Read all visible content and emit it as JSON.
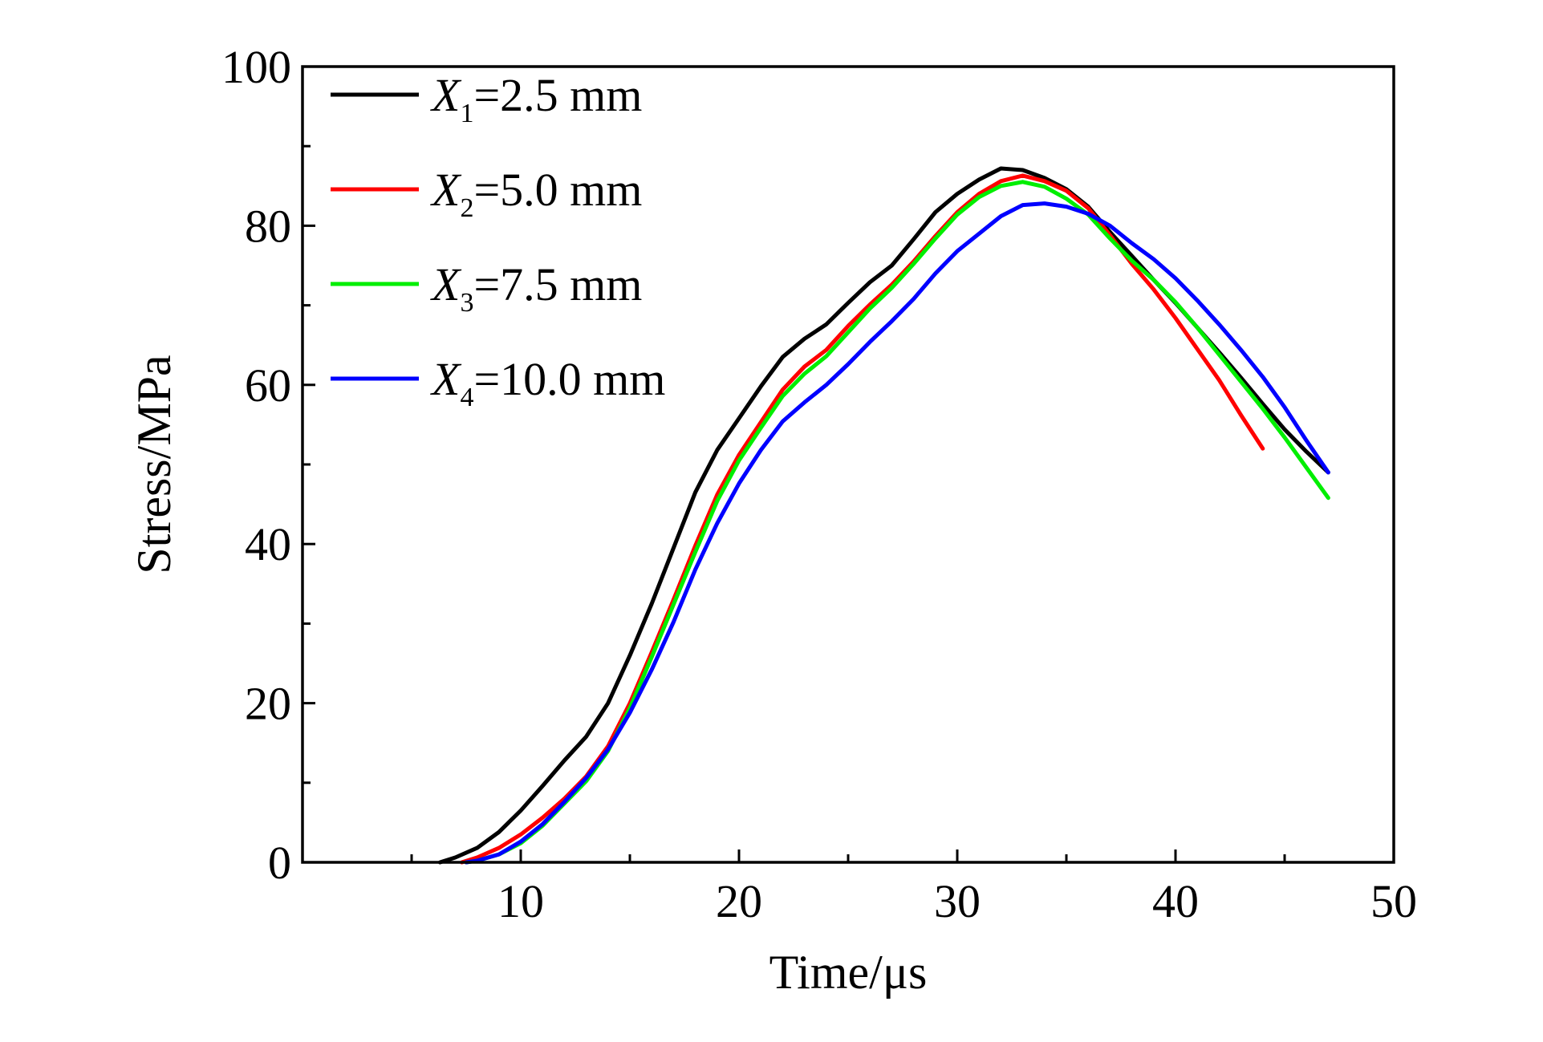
{
  "chart_data": {
    "type": "line",
    "title": "",
    "xlabel": "Time/μs",
    "ylabel": "Stress/MPa",
    "xlim": [
      0,
      50
    ],
    "ylim": [
      0,
      100
    ],
    "x_ticks": [
      10,
      20,
      30,
      40,
      50
    ],
    "x_tick_labels": [
      "10",
      "20",
      "30",
      "40",
      "50"
    ],
    "y_ticks": [
      0,
      20,
      40,
      60,
      80,
      100
    ],
    "y_tick_labels": [
      "0",
      "20",
      "40",
      "60",
      "80",
      "100"
    ],
    "grid": false,
    "legend_position": "top-left",
    "series": [
      {
        "name": "X1=2.5 mm",
        "legend": {
          "var": "X",
          "sub": "1",
          "rest": "=2.5 mm"
        },
        "color": "#000000",
        "points": [
          [
            6.3,
            0
          ],
          [
            7,
            0.6
          ],
          [
            8,
            1.8
          ],
          [
            9,
            3.8
          ],
          [
            10,
            6.5
          ],
          [
            11,
            9.6
          ],
          [
            12,
            12.8
          ],
          [
            13,
            15.8
          ],
          [
            14,
            20
          ],
          [
            15,
            26
          ],
          [
            16,
            32.5
          ],
          [
            17,
            39.5
          ],
          [
            18,
            46.5
          ],
          [
            19,
            51.8
          ],
          [
            20,
            55.8
          ],
          [
            21,
            59.8
          ],
          [
            22,
            63.5
          ],
          [
            23,
            65.8
          ],
          [
            24,
            67.6
          ],
          [
            25,
            70.3
          ],
          [
            26,
            72.9
          ],
          [
            27,
            75
          ],
          [
            28,
            78.3
          ],
          [
            29,
            81.7
          ],
          [
            30,
            84
          ],
          [
            31,
            85.8
          ],
          [
            32,
            87.2
          ],
          [
            33,
            87
          ],
          [
            34,
            86
          ],
          [
            35,
            84.6
          ],
          [
            36,
            82.4
          ],
          [
            37,
            79.2
          ],
          [
            38,
            76.2
          ],
          [
            39,
            73.2
          ],
          [
            40,
            70.3
          ],
          [
            41,
            67.2
          ],
          [
            42,
            64.1
          ],
          [
            43,
            60.9
          ],
          [
            44,
            57.6
          ],
          [
            45,
            54.4
          ],
          [
            46,
            51.6
          ],
          [
            47,
            49
          ]
        ]
      },
      {
        "name": "X2=5.0 mm",
        "legend": {
          "var": "X",
          "sub": "2",
          "rest": "=5.0 mm"
        },
        "color": "#ff0000",
        "points": [
          [
            7.3,
            0
          ],
          [
            8,
            0.6
          ],
          [
            9,
            1.8
          ],
          [
            10,
            3.5
          ],
          [
            11,
            5.6
          ],
          [
            12,
            8
          ],
          [
            13,
            10.8
          ],
          [
            14,
            14.6
          ],
          [
            15,
            20
          ],
          [
            16,
            26.4
          ],
          [
            17,
            33
          ],
          [
            18,
            39.8
          ],
          [
            19,
            46.2
          ],
          [
            20,
            51.2
          ],
          [
            21,
            55.3
          ],
          [
            22,
            59.4
          ],
          [
            23,
            62.3
          ],
          [
            24,
            64.4
          ],
          [
            25,
            67.4
          ],
          [
            26,
            70.1
          ],
          [
            27,
            72.6
          ],
          [
            28,
            75.5
          ],
          [
            29,
            78.7
          ],
          [
            30,
            81.7
          ],
          [
            31,
            84
          ],
          [
            32,
            85.6
          ],
          [
            33,
            86.3
          ],
          [
            34,
            85.6
          ],
          [
            35,
            84.4
          ],
          [
            36,
            82.2
          ],
          [
            37,
            78.8
          ],
          [
            38,
            75.2
          ],
          [
            39,
            72
          ],
          [
            40,
            68.4
          ],
          [
            41,
            64.5
          ],
          [
            42,
            60.6
          ],
          [
            43,
            56.2
          ],
          [
            44,
            52
          ]
        ]
      },
      {
        "name": "X3=7.5 mm",
        "legend": {
          "var": "X",
          "sub": "3",
          "rest": "=7.5 mm"
        },
        "color": "#00ee00",
        "points": [
          [
            7.5,
            0
          ],
          [
            8,
            0.2
          ],
          [
            9,
            1
          ],
          [
            10,
            2.4
          ],
          [
            11,
            4.6
          ],
          [
            12,
            7.4
          ],
          [
            13,
            10.2
          ],
          [
            14,
            14
          ],
          [
            15,
            19.4
          ],
          [
            16,
            25.8
          ],
          [
            17,
            32.4
          ],
          [
            18,
            39
          ],
          [
            19,
            45.4
          ],
          [
            20,
            50.5
          ],
          [
            21,
            54.6
          ],
          [
            22,
            58.6
          ],
          [
            23,
            61.4
          ],
          [
            24,
            63.6
          ],
          [
            25,
            66.6
          ],
          [
            26,
            69.6
          ],
          [
            27,
            72.2
          ],
          [
            28,
            75.2
          ],
          [
            29,
            78.4
          ],
          [
            30,
            81.4
          ],
          [
            31,
            83.6
          ],
          [
            32,
            85
          ],
          [
            33,
            85.5
          ],
          [
            34,
            84.9
          ],
          [
            35,
            83.4
          ],
          [
            36,
            81.4
          ],
          [
            37,
            78.4
          ],
          [
            38,
            75.6
          ],
          [
            39,
            73.2
          ],
          [
            40,
            70.4
          ],
          [
            41,
            67.2
          ],
          [
            42,
            63.8
          ],
          [
            43,
            60.4
          ],
          [
            44,
            57
          ],
          [
            45,
            53.4
          ],
          [
            46,
            49.6
          ],
          [
            47,
            45.8
          ]
        ]
      },
      {
        "name": "X4=10.0 mm",
        "legend": {
          "var": "X",
          "sub": "4",
          "rest": "=10.0 mm"
        },
        "color": "#0000ff",
        "points": [
          [
            7.5,
            0
          ],
          [
            8,
            0.2
          ],
          [
            9,
            1
          ],
          [
            10,
            2.6
          ],
          [
            11,
            4.8
          ],
          [
            12,
            7.6
          ],
          [
            13,
            10.6
          ],
          [
            14,
            14.2
          ],
          [
            15,
            18.8
          ],
          [
            16,
            24.2
          ],
          [
            17,
            30.2
          ],
          [
            18,
            36.8
          ],
          [
            19,
            42.6
          ],
          [
            20,
            47.6
          ],
          [
            21,
            51.8
          ],
          [
            22,
            55.4
          ],
          [
            23,
            57.8
          ],
          [
            24,
            60
          ],
          [
            25,
            62.6
          ],
          [
            26,
            65.4
          ],
          [
            27,
            68
          ],
          [
            28,
            70.8
          ],
          [
            29,
            74
          ],
          [
            30,
            76.8
          ],
          [
            31,
            79
          ],
          [
            32,
            81.2
          ],
          [
            33,
            82.6
          ],
          [
            34,
            82.8
          ],
          [
            35,
            82.4
          ],
          [
            36,
            81.5
          ],
          [
            37,
            80
          ],
          [
            38,
            77.8
          ],
          [
            39,
            75.8
          ],
          [
            40,
            73.4
          ],
          [
            41,
            70.6
          ],
          [
            42,
            67.6
          ],
          [
            43,
            64.4
          ],
          [
            44,
            61
          ],
          [
            45,
            57.2
          ],
          [
            46,
            53
          ],
          [
            47,
            49
          ]
        ]
      }
    ]
  }
}
